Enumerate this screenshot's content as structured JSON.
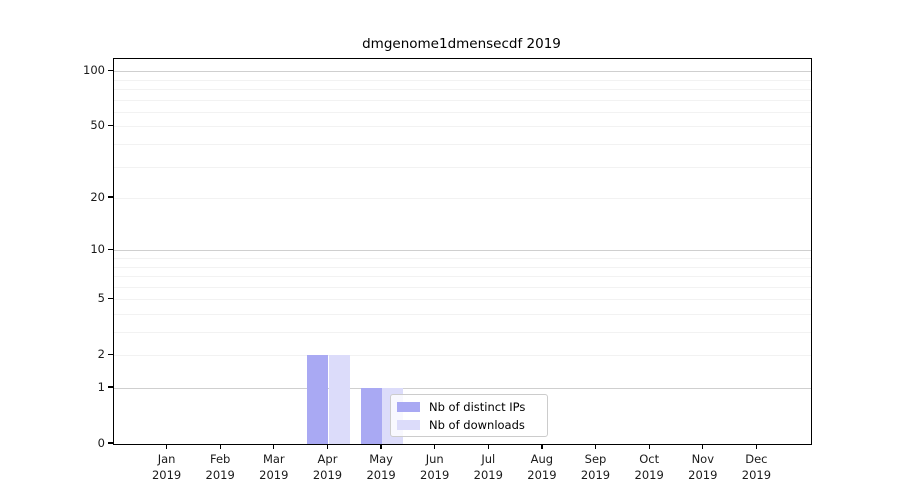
{
  "chart_data": {
    "type": "bar",
    "title": "dmgenome1dmensecdf 2019",
    "categories": [
      "Jan",
      "Feb",
      "Mar",
      "Apr",
      "May",
      "Jun",
      "Jul",
      "Aug",
      "Sep",
      "Oct",
      "Nov",
      "Dec"
    ],
    "x_year": "2019",
    "series": [
      {
        "name": "Nb of distinct IPs",
        "color": "#a9a9f3",
        "values": [
          0,
          0,
          0,
          2,
          1,
          0,
          0,
          0,
          0,
          0,
          0,
          0
        ]
      },
      {
        "name": "Nb of downloads",
        "color": "#dcdcfa",
        "values": [
          0,
          0,
          0,
          2,
          1,
          0,
          0,
          0,
          0,
          0,
          0,
          0
        ]
      }
    ],
    "y_ticks": [
      0,
      1,
      2,
      5,
      10,
      20,
      50,
      100
    ],
    "y_scale": "log1p",
    "ylim": [
      0,
      116.5
    ],
    "xlabel": "",
    "ylabel": "",
    "grid": true,
    "legend_position": "lower-center",
    "colors": {
      "grid_minor": "#f2f2f2",
      "grid_major": "#cfcfcf",
      "spine": "#000000",
      "tick_text": "#1a1a1a"
    }
  }
}
